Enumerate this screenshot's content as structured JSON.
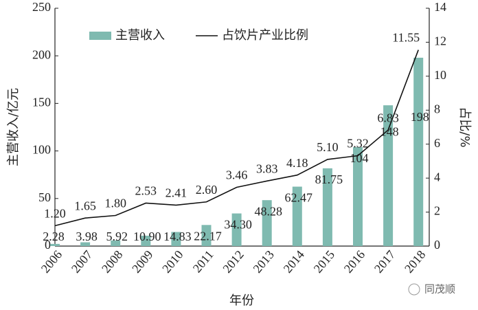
{
  "chart_data": {
    "type": "bar",
    "x_label": "年份",
    "y_label": "主营收入/亿元",
    "y2_label": "占比/%",
    "categories": [
      "2006",
      "2007",
      "2008",
      "2009",
      "2010",
      "2011",
      "2012",
      "2013",
      "2014",
      "2015",
      "2016",
      "2017",
      "2018"
    ],
    "series": [
      {
        "name": "主营收入",
        "type": "bar",
        "color": "#7fbab0",
        "values": [
          2.28,
          3.98,
          5.92,
          10.9,
          14.83,
          22.17,
          34.3,
          48.28,
          62.47,
          81.75,
          104,
          148,
          198
        ],
        "value_labels": [
          "2.28",
          "3.98",
          "5.92",
          "10.90",
          "14.83",
          "22.17",
          "34.30",
          "48.28",
          "62.47",
          "81.75",
          "104",
          "148",
          "198"
        ]
      },
      {
        "name": "占饮片产业比例",
        "type": "line",
        "axis": "y2",
        "color": "#111111",
        "values": [
          1.2,
          1.65,
          1.8,
          2.53,
          2.41,
          2.6,
          3.46,
          3.83,
          4.18,
          5.1,
          5.32,
          6.83,
          11.55
        ],
        "value_labels": [
          "1.20",
          "1.65",
          "1.80",
          "2.53",
          "2.41",
          "2.60",
          "3.46",
          "3.83",
          "4.18",
          "5.10",
          "5.32",
          "6.83",
          "11.55"
        ]
      }
    ],
    "ylim": [
      0,
      250
    ],
    "yticks": [
      0,
      50,
      100,
      150,
      200,
      250
    ],
    "y2lim": [
      0,
      14
    ],
    "y2ticks": [
      0,
      2,
      4,
      6,
      8,
      10,
      12,
      14
    ],
    "legend": "top",
    "watermark": "同茂顺"
  }
}
